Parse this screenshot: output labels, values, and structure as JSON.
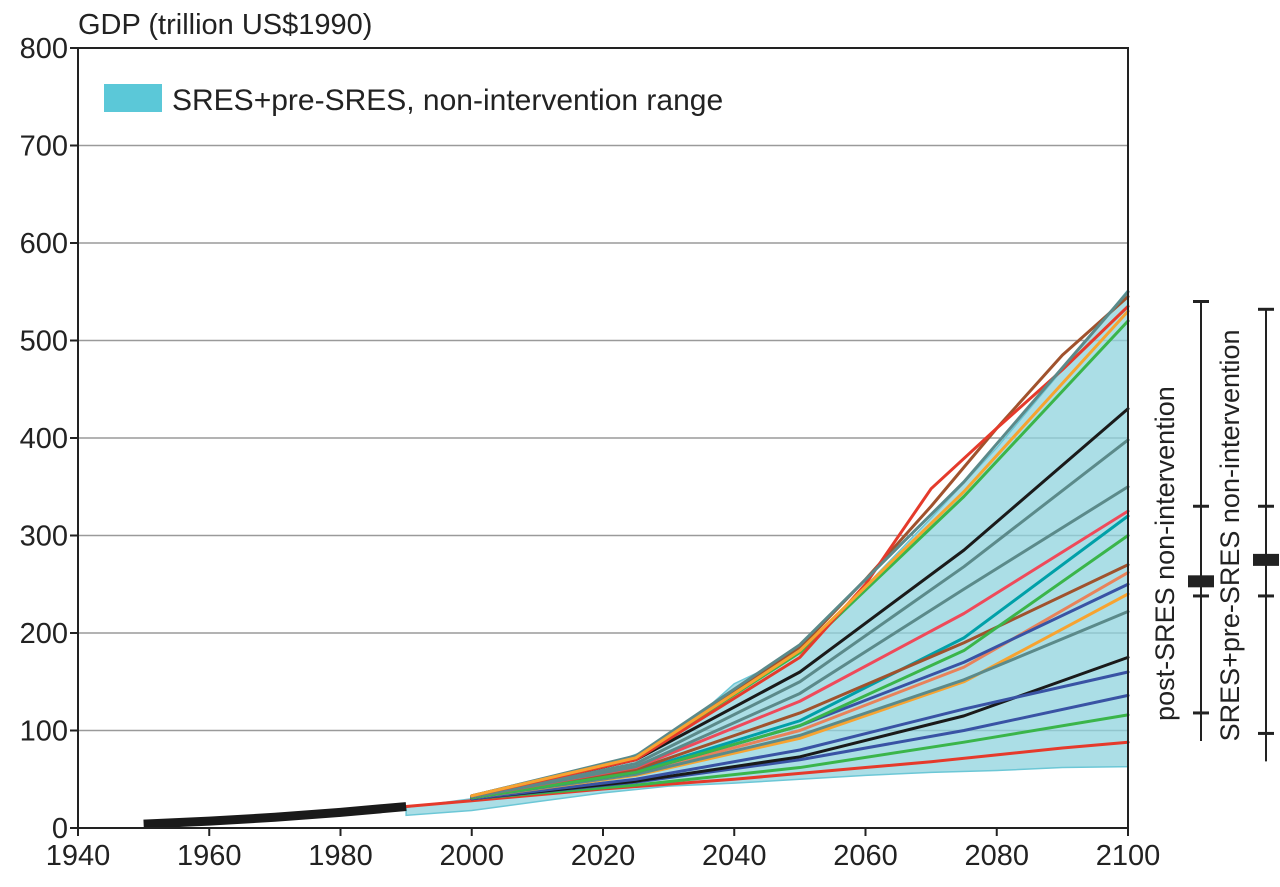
{
  "chart_data": {
    "type": "line",
    "title": "GDP (trillion US$1990)",
    "xlabel": "",
    "ylabel": "",
    "xlim": [
      1940,
      2100
    ],
    "ylim": [
      0,
      800
    ],
    "x_ticks": [
      1940,
      1960,
      1980,
      2000,
      2020,
      2040,
      2060,
      2080,
      2100
    ],
    "y_ticks": [
      0,
      100,
      200,
      300,
      400,
      500,
      600,
      700,
      800
    ],
    "grid": "horizontal",
    "legend": {
      "position": "top-left",
      "label": "SRES+pre-SRES, non-intervention range",
      "color": "#5bc8d8"
    },
    "range_band": {
      "label": "SRES+pre-SRES, non-intervention range",
      "upper": [
        [
          1990,
          21
        ],
        [
          2000,
          30
        ],
        [
          2010,
          45
        ],
        [
          2020,
          63
        ],
        [
          2030,
          88
        ],
        [
          2040,
          148
        ],
        [
          2050,
          180
        ],
        [
          2060,
          248
        ],
        [
          2070,
          318
        ],
        [
          2080,
          390
        ],
        [
          2090,
          470
        ],
        [
          2100,
          552
        ]
      ],
      "lower": [
        [
          1990,
          13
        ],
        [
          2000,
          18
        ],
        [
          2010,
          27
        ],
        [
          2020,
          36
        ],
        [
          2030,
          43
        ],
        [
          2040,
          46
        ],
        [
          2050,
          50
        ],
        [
          2060,
          54
        ],
        [
          2070,
          57
        ],
        [
          2080,
          59
        ],
        [
          2090,
          62
        ],
        [
          2100,
          63
        ]
      ]
    },
    "historical": {
      "x": [
        1950,
        1960,
        1970,
        1980,
        1990
      ],
      "y": [
        4,
        7,
        11,
        16,
        22
      ],
      "color": "#1a1a1a"
    },
    "series": [
      {
        "color": "#e53a2b",
        "x": [
          1990,
          2000,
          2010,
          2020,
          2030,
          2040,
          2050,
          2060,
          2070,
          2080,
          2090,
          2100
        ],
        "y": [
          22,
          28,
          34,
          40,
          45,
          50,
          56,
          62,
          68,
          75,
          82,
          88
        ]
      },
      {
        "color": "#3ab54a",
        "x": [
          2000,
          2025,
          2050,
          2075,
          2100
        ],
        "y": [
          30,
          44,
          62,
          88,
          116
        ]
      },
      {
        "color": "#3953a4",
        "x": [
          2000,
          2025,
          2050,
          2075,
          2100
        ],
        "y": [
          30,
          47,
          70,
          100,
          136
        ]
      },
      {
        "color": "#1a1a1a",
        "x": [
          2000,
          2025,
          2050,
          2075,
          2100
        ],
        "y": [
          30,
          48,
          73,
          115,
          175
        ]
      },
      {
        "color": "#3953a4",
        "x": [
          2000,
          2025,
          2050,
          2075,
          2100
        ],
        "y": [
          30,
          50,
          80,
          122,
          160
        ]
      },
      {
        "color": "#f7a330",
        "x": [
          2000,
          2025,
          2050,
          2075,
          2100
        ],
        "y": [
          31,
          54,
          92,
          150,
          240
        ]
      },
      {
        "color": "#e8825a",
        "x": [
          2000,
          2025,
          2050,
          2075,
          2100
        ],
        "y": [
          31,
          56,
          100,
          165,
          262
        ]
      },
      {
        "color": "#5b8a8a",
        "x": [
          2000,
          2025,
          2050,
          2075,
          2100
        ],
        "y": [
          31,
          55,
          95,
          152,
          222
        ]
      },
      {
        "color": "#3953a4",
        "x": [
          2000,
          2025,
          2050,
          2075,
          2100
        ],
        "y": [
          31,
          57,
          105,
          170,
          250
        ]
      },
      {
        "color": "#00a0a8",
        "x": [
          2000,
          2025,
          2050,
          2075,
          2100
        ],
        "y": [
          32,
          58,
          110,
          195,
          320
        ]
      },
      {
        "color": "#a0522d",
        "x": [
          2000,
          2025,
          2050,
          2075,
          2100
        ],
        "y": [
          32,
          60,
          118,
          190,
          270
        ]
      },
      {
        "color": "#3ab54a",
        "x": [
          2000,
          2025,
          2050,
          2075,
          2100
        ],
        "y": [
          31,
          57,
          105,
          182,
          300
        ]
      },
      {
        "color": "#ef4a5a",
        "x": [
          2000,
          2025,
          2050,
          2075,
          2100
        ],
        "y": [
          32,
          62,
          130,
          220,
          325
        ]
      },
      {
        "color": "#5b8a8a",
        "x": [
          2000,
          2025,
          2050,
          2075,
          2100
        ],
        "y": [
          32,
          63,
          138,
          245,
          350
        ]
      },
      {
        "color": "#1a1a1a",
        "x": [
          2000,
          2025,
          2050,
          2075,
          2100
        ],
        "y": [
          32,
          70,
          160,
          285,
          430
        ]
      },
      {
        "color": "#5b8a8a",
        "x": [
          2000,
          2025,
          2050,
          2075,
          2100
        ],
        "y": [
          32,
          66,
          150,
          268,
          398
        ]
      },
      {
        "color": "#3ab54a",
        "x": [
          2000,
          2025,
          2050,
          2075,
          2100
        ],
        "y": [
          33,
          72,
          180,
          340,
          520
        ]
      },
      {
        "color": "#a0522d",
        "x": [
          2000,
          2025,
          2050,
          2060,
          2070,
          2080,
          2090,
          2100
        ],
        "y": [
          33,
          73,
          185,
          255,
          330,
          410,
          485,
          545
        ]
      },
      {
        "color": "#e53a2b",
        "x": [
          2000,
          2025,
          2050,
          2060,
          2070,
          2080,
          2090,
          2100
        ],
        "y": [
          33,
          70,
          175,
          250,
          348,
          410,
          470,
          535
        ]
      },
      {
        "color": "#5b8a8a",
        "x": [
          2000,
          2025,
          2050,
          2075,
          2100
        ],
        "y": [
          33,
          74,
          188,
          355,
          550
        ]
      },
      {
        "color": "#f7a330",
        "x": [
          2000,
          2025,
          2050,
          2075,
          2100
        ],
        "y": [
          33,
          72,
          182,
          345,
          530
        ]
      }
    ],
    "side_bars": [
      {
        "label": "post-SRES non-intervention",
        "min": 118,
        "max": 540,
        "tick_low": 238,
        "tick_high": 330,
        "median": 253
      },
      {
        "label": "SRES+pre-SRES non-intervention",
        "min": 97,
        "max": 532,
        "tick_low": 238,
        "tick_high": 330,
        "median": 275
      }
    ]
  }
}
